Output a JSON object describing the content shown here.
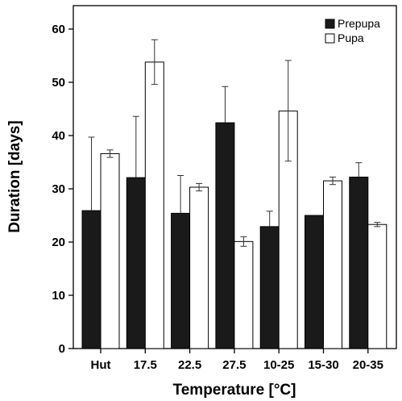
{
  "chart_data": {
    "type": "bar",
    "xlabel": "Temperature [°C]",
    "ylabel": "Duration [days]",
    "ylim": [
      0,
      65
    ],
    "yticks": [
      0,
      10,
      20,
      30,
      40,
      50,
      60
    ],
    "categories": [
      "Hut",
      "17.5",
      "22.5",
      "27.5",
      "10-25",
      "15-30",
      "20-35"
    ],
    "legend_position": "top-right",
    "grid": false,
    "series": [
      {
        "name": "Prepupa",
        "color": "#1a1a1a",
        "values": [
          25.9,
          32.1,
          25.4,
          42.4,
          22.9,
          25.0,
          32.2
        ],
        "error_upper": [
          39.7,
          43.6,
          32.5,
          49.2,
          25.8,
          25.0,
          34.9
        ]
      },
      {
        "name": "Pupa",
        "color": "#ffffff",
        "values": [
          36.6,
          53.8,
          30.3,
          20.1,
          44.6,
          31.5,
          23.3
        ],
        "error_upper": [
          37.3,
          58.0,
          31.0,
          21.0,
          54.1,
          32.2,
          23.7
        ],
        "error_lower": [
          35.9,
          49.6,
          29.6,
          19.2,
          35.2,
          30.8,
          22.9
        ]
      }
    ]
  }
}
